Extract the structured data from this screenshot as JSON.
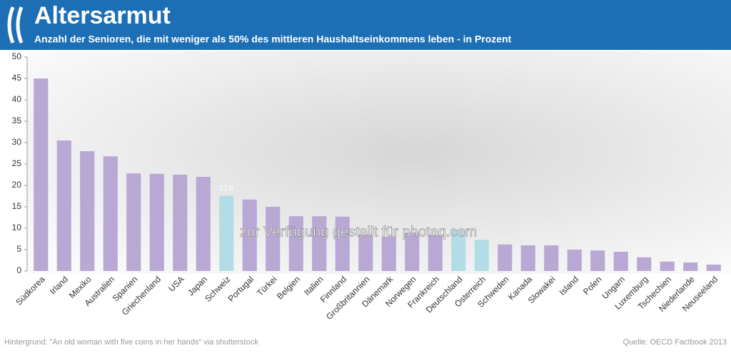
{
  "chart_data": {
    "type": "bar",
    "title": "Altersarmut",
    "subtitle": "Anzahl der Senioren, die mit weniger als 50% des mittleren Haushaltseinkommens leben - in Prozent",
    "categories": [
      "Südkorea",
      "Irland",
      "Mexiko",
      "Australien",
      "Spanien",
      "Griechenland",
      "USA",
      "Japan",
      "Schweiz",
      "Portugal",
      "Türkei",
      "Belgien",
      "Italien",
      "Finnland",
      "Großbritannien",
      "Dänemark",
      "Norwegen",
      "Frankreich",
      "Deutschland",
      "Österreich",
      "Schweden",
      "Kanada",
      "Slowakei",
      "Island",
      "Polen",
      "Ungarn",
      "Luxemburg",
      "Tschechien",
      "Niederlande",
      "Neuseeland"
    ],
    "values": [
      45,
      30.5,
      28,
      26.8,
      22.8,
      22.7,
      22.5,
      22,
      17.6,
      16.7,
      15,
      12.8,
      12.8,
      12.7,
      8.6,
      8,
      9,
      8.5,
      9.5,
      7.3,
      6.2,
      6,
      6,
      5,
      4.8,
      4.5,
      3.2,
      2.2,
      2,
      1.5
    ],
    "value_labels": [
      null,
      null,
      null,
      null,
      null,
      null,
      null,
      null,
      "17.6",
      null,
      null,
      null,
      null,
      null,
      null,
      null,
      null,
      null,
      null,
      null,
      null,
      null,
      null,
      null,
      null,
      null,
      null,
      null,
      null,
      null
    ],
    "colors": [
      "#b9a8d4",
      "#b9a8d4",
      "#b9a8d4",
      "#b9a8d4",
      "#b9a8d4",
      "#b9a8d4",
      "#b9a8d4",
      "#b9a8d4",
      "#b3dde6",
      "#b9a8d4",
      "#b9a8d4",
      "#b9a8d4",
      "#b9a8d4",
      "#b9a8d4",
      "#b9a8d4",
      "#b9a8d4",
      "#b9a8d4",
      "#b9a8d4",
      "#b3dde6",
      "#b3dde6",
      "#b9a8d4",
      "#b9a8d4",
      "#b9a8d4",
      "#b9a8d4",
      "#b9a8d4",
      "#b9a8d4",
      "#b9a8d4",
      "#b9a8d4",
      "#b9a8d4",
      "#b9a8d4"
    ],
    "ylim": [
      0,
      50
    ],
    "yticks": [
      0,
      5,
      10,
      15,
      20,
      25,
      30,
      35,
      40,
      45,
      50
    ],
    "watermark": "zur Verfügung gestellt für photaq.com",
    "credit": "Hintergrund: \"An old woman with five coins in her hands\" via shutterstock",
    "source": "Quelle: OECD Factbook 2013"
  }
}
